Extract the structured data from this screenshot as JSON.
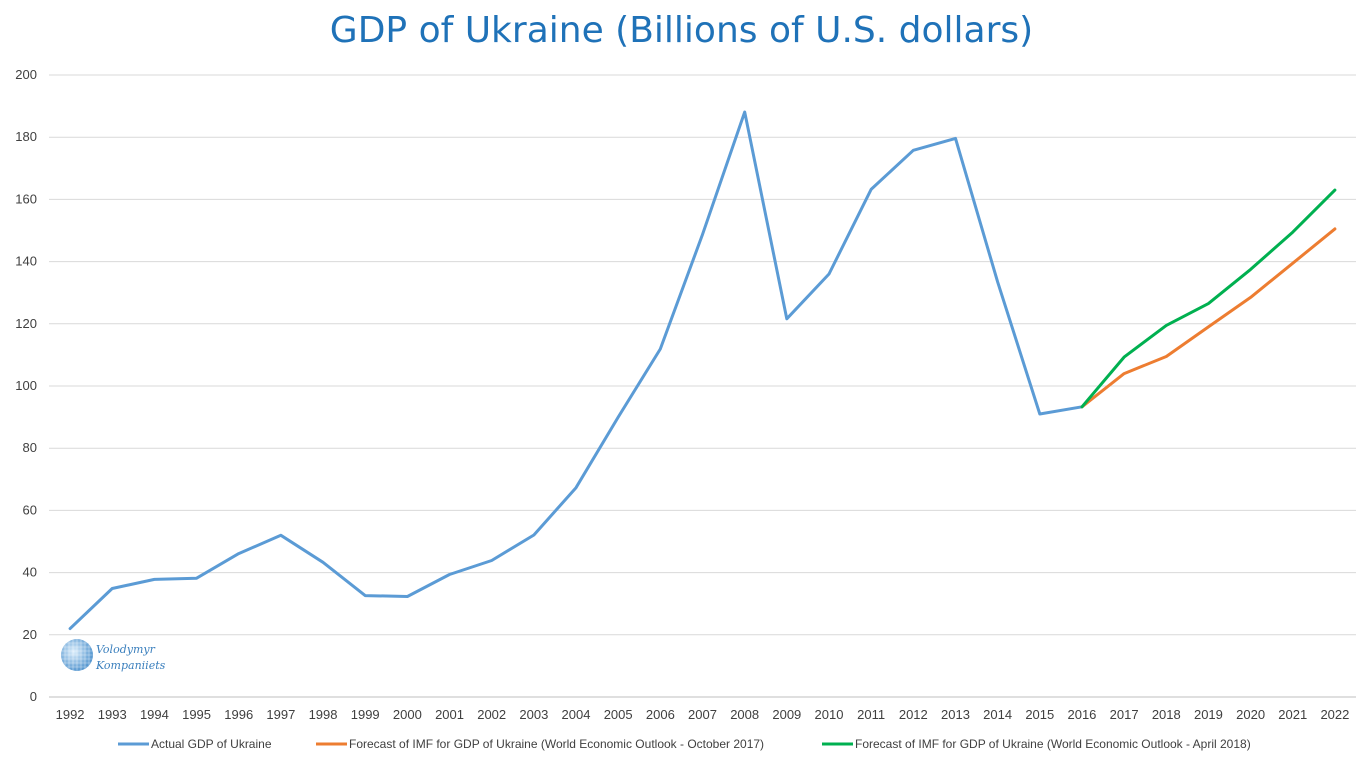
{
  "chart_data": {
    "type": "line",
    "title": "GDP of Ukraine (Billions of U.S. dollars)",
    "xlabel": "",
    "ylabel": "",
    "ylim": [
      0,
      200
    ],
    "yticks": [
      0,
      20,
      40,
      60,
      80,
      100,
      120,
      140,
      160,
      180,
      200
    ],
    "grid": true,
    "legend_position": "bottom",
    "categories": [
      "1992",
      "1993",
      "1994",
      "1995",
      "1996",
      "1997",
      "1998",
      "1999",
      "2000",
      "2001",
      "2002",
      "2003",
      "2004",
      "2005",
      "2006",
      "2007",
      "2008",
      "2009",
      "2010",
      "2011",
      "2012",
      "2013",
      "2014",
      "2015",
      "2016",
      "2017",
      "2018",
      "2019",
      "2020",
      "2021",
      "2022"
    ],
    "series": [
      {
        "name": "Actual GDP of Ukraine",
        "color": "#5b9bd5",
        "values": [
          22,
          34.9,
          37.8,
          38.2,
          46.1,
          52,
          43.3,
          32.6,
          32.3,
          39.4,
          43.9,
          52.1,
          67.3,
          90,
          111.9,
          148.7,
          188.1,
          121.6,
          136,
          163.2,
          175.8,
          179.6,
          133.5,
          91,
          93.3,
          null,
          null,
          null,
          null,
          null,
          null
        ]
      },
      {
        "name": "Forecast of IMF for GDP of Ukraine (World Economic Outlook - October 2017)",
        "color": "#ed7d31",
        "values": [
          null,
          null,
          null,
          null,
          null,
          null,
          null,
          null,
          null,
          null,
          null,
          null,
          null,
          null,
          null,
          null,
          null,
          null,
          null,
          null,
          null,
          null,
          null,
          null,
          93.3,
          104,
          109.5,
          119,
          128.5,
          139.5,
          150.5
        ]
      },
      {
        "name": "Forecast of IMF for GDP of Ukraine (World Economic Outlook - April 2018)",
        "color": "#00b050",
        "values": [
          null,
          null,
          null,
          null,
          null,
          null,
          null,
          null,
          null,
          null,
          null,
          null,
          null,
          null,
          null,
          null,
          null,
          null,
          null,
          null,
          null,
          null,
          null,
          null,
          93.3,
          109.3,
          119.5,
          126.5,
          137.5,
          149.5,
          163
        ]
      }
    ]
  },
  "watermark": {
    "line1": "Volodymyr",
    "line2": "Kompaniiets"
  }
}
